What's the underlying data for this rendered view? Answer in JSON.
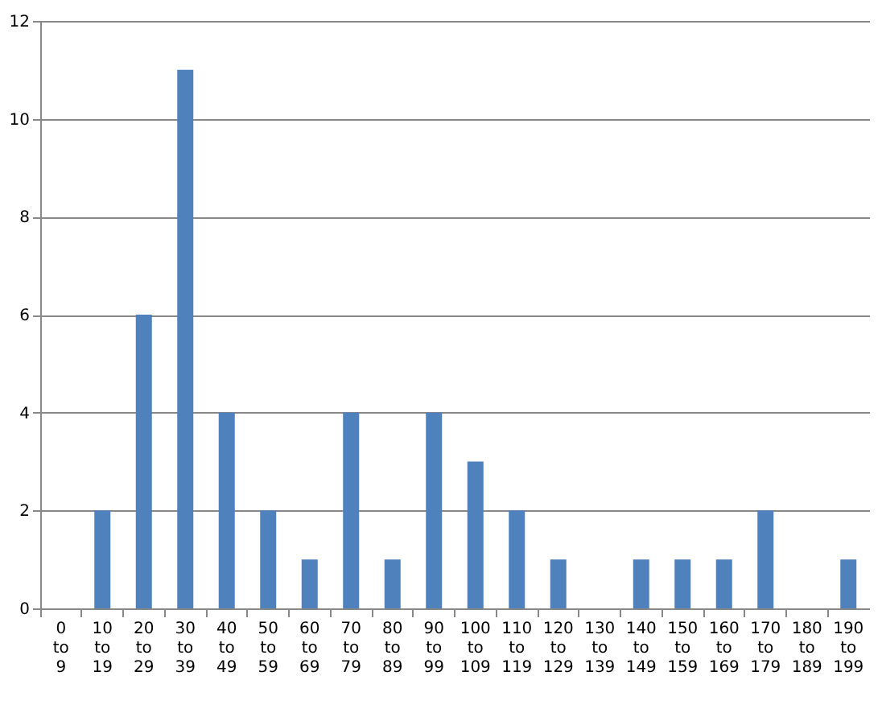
{
  "chart_data": {
    "type": "bar",
    "categories": [
      "0 to 9",
      "10 to 19",
      "20 to 29",
      "30 to 39",
      "40 to 49",
      "50 to 59",
      "60 to 69",
      "70 to 79",
      "80 to 89",
      "90 to 99",
      "100 to 109",
      "110 to 119",
      "120 to 129",
      "130 to 139",
      "140 to 149",
      "150 to 159",
      "160 to 169",
      "170 to 179",
      "180 to 189",
      "190 to 199"
    ],
    "values": [
      0,
      2,
      6,
      11,
      4,
      2,
      1,
      4,
      1,
      4,
      3,
      2,
      1,
      0,
      1,
      1,
      1,
      2,
      0,
      1
    ],
    "color": "#4f81bd",
    "ylim": [
      0,
      12
    ],
    "yticks": [
      0,
      2,
      4,
      6,
      8,
      10,
      12
    ],
    "grid": "y"
  }
}
